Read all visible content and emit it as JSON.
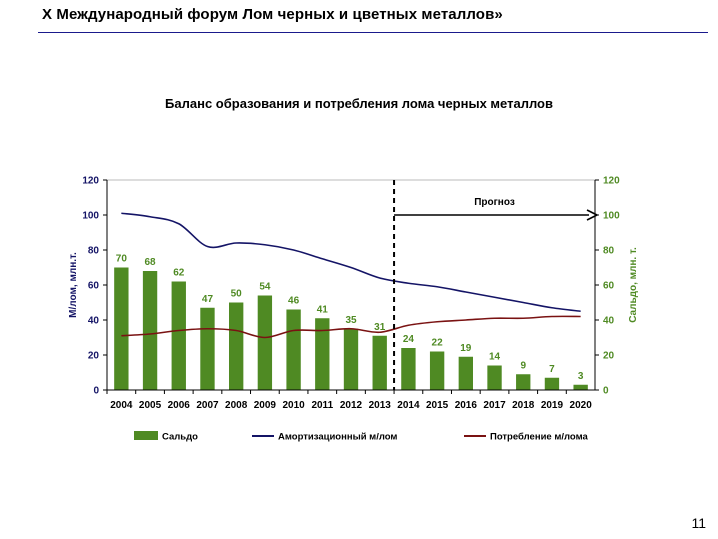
{
  "slide": {
    "header_title": "X Международный форум Лом черных и цветных металлов»",
    "page_number": "11"
  },
  "colors": {
    "bar": "#4f8a23",
    "amortization": "#141466",
    "consumption": "#7a1212",
    "left_axis_label": "#141466",
    "right_axis_label": "#4f8a23"
  },
  "chart_data": {
    "type": "bar",
    "title": "Баланс образования и потребления лома черных металлов",
    "categories": [
      "2004",
      "2005",
      "2006",
      "2007",
      "2008",
      "2009",
      "2010",
      "2011",
      "2012",
      "2013",
      "2014",
      "2015",
      "2016",
      "2017",
      "2018",
      "2019",
      "2020"
    ],
    "ylabel": "М/лом, млн.т.",
    "y2label": "Сальдо, млн. т.",
    "ylim": [
      0,
      120
    ],
    "y2lim": [
      0,
      120
    ],
    "yticks": [
      0,
      20,
      40,
      60,
      80,
      100,
      120
    ],
    "forecast_label": "Прогноз",
    "forecast_start_after": "2013",
    "series": [
      {
        "name": "Сальдо",
        "kind": "bar",
        "values": [
          70,
          68,
          62,
          47,
          50,
          54,
          46,
          41,
          35,
          31,
          24,
          22,
          19,
          14,
          9,
          7,
          3
        ]
      },
      {
        "name": "Амортизационный м/лом",
        "kind": "line",
        "values": [
          101,
          99,
          95,
          82,
          84,
          83,
          80,
          75,
          70,
          64,
          61,
          59,
          56,
          53,
          50,
          47,
          45
        ]
      },
      {
        "name": "Потребление м/лома",
        "kind": "line",
        "values": [
          31,
          32,
          34,
          35,
          34,
          30,
          34,
          34,
          35,
          33,
          37,
          39,
          40,
          41,
          41,
          42,
          42
        ]
      }
    ],
    "legend": [
      "Сальдо",
      "Амортизационный м/лом",
      "Потребление м/лома"
    ]
  }
}
